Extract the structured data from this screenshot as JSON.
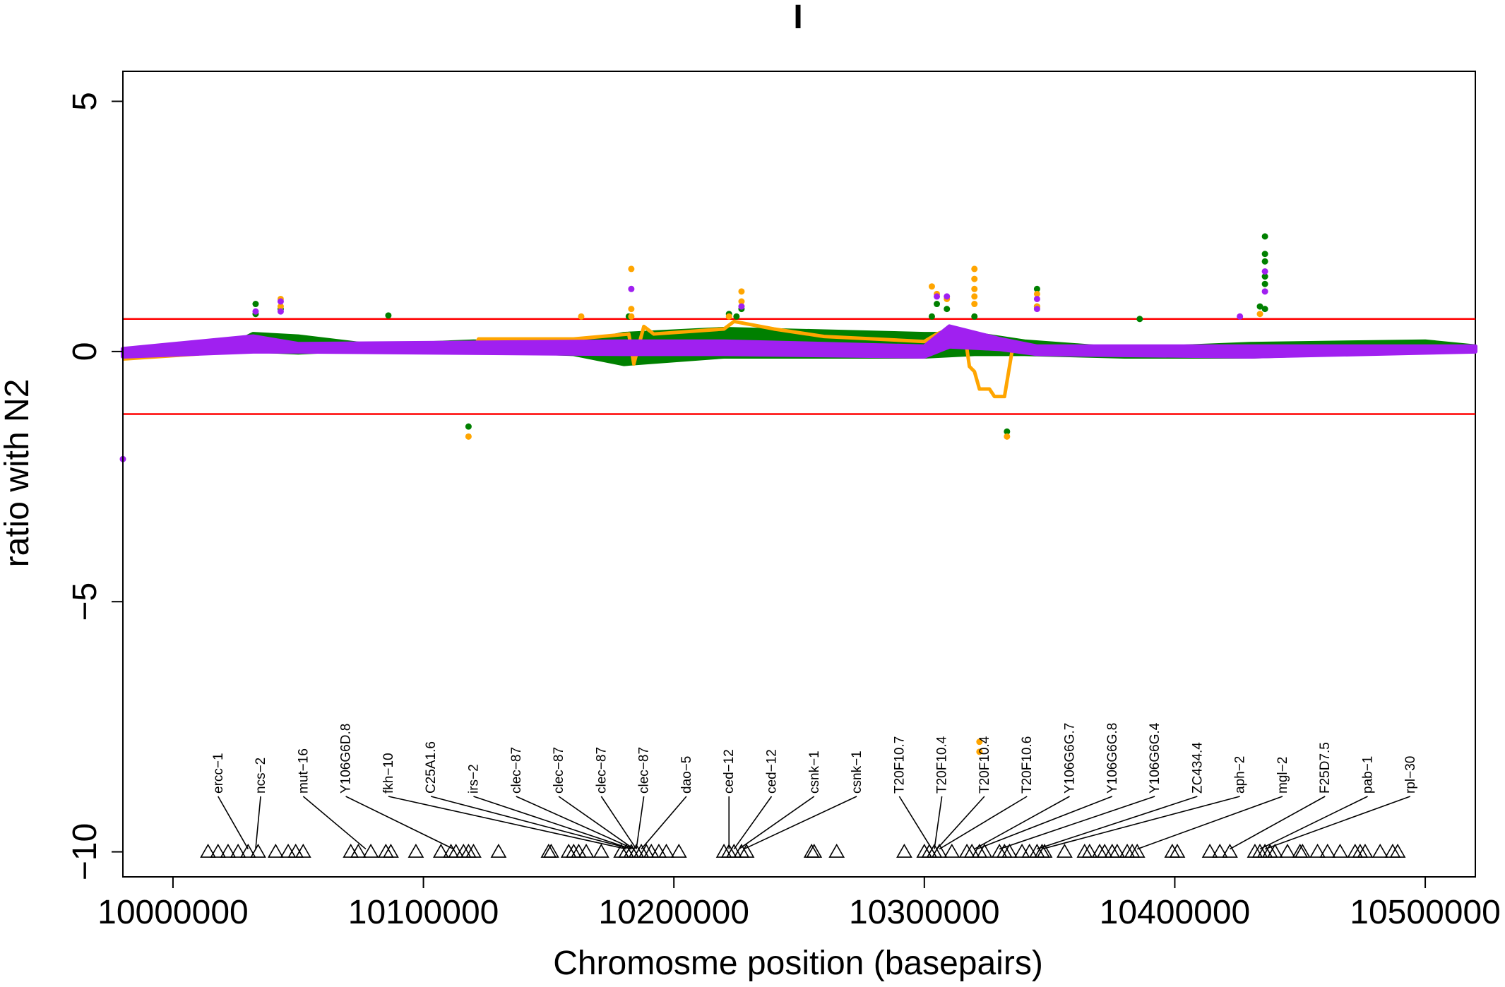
{
  "chart_data": {
    "type": "line",
    "title": "I",
    "xlabel": "Chromosme position (basepairs)",
    "ylabel": "ratio with N2",
    "xlim": [
      9980000,
      10520000
    ],
    "ylim": [
      -10.5,
      5.6
    ],
    "x_ticks": [
      10000000,
      10100000,
      10200000,
      10300000,
      10400000,
      10500000
    ],
    "x_tick_labels": [
      "10000000",
      "10100000",
      "10200000",
      "10300000",
      "10400000",
      "10500000"
    ],
    "y_ticks": [
      5,
      0,
      -5,
      -10
    ],
    "y_tick_labels": [
      "5",
      "0",
      "−5",
      "−10"
    ],
    "grid": false,
    "legend": "none",
    "thresholds": [
      {
        "y": 0.65,
        "color": "#ff0000"
      },
      {
        "y": -1.25,
        "color": "#ff0000"
      }
    ],
    "series": [
      {
        "color": "#008000",
        "band": [
          [
            9980000,
            -0.05,
            0.05
          ],
          [
            10020000,
            0.0,
            0.05
          ],
          [
            10032000,
            0.02,
            0.35
          ],
          [
            10050000,
            -0.02,
            0.3
          ],
          [
            10080000,
            0.05,
            0.12
          ],
          [
            10120000,
            0.02,
            0.2
          ],
          [
            10160000,
            -0.05,
            0.15
          ],
          [
            10180000,
            -0.25,
            0.35
          ],
          [
            10220000,
            -0.1,
            0.45
          ],
          [
            10300000,
            -0.1,
            0.35
          ],
          [
            10320000,
            -0.05,
            0.35
          ],
          [
            10340000,
            -0.05,
            0.2
          ],
          [
            10380000,
            -0.1,
            0.05
          ],
          [
            10430000,
            -0.1,
            0.15
          ],
          [
            10500000,
            0.0,
            0.2
          ],
          [
            10520000,
            0.05,
            0.1
          ]
        ],
        "outliers": [
          [
            10033000,
            0.95
          ],
          [
            10033000,
            0.75
          ],
          [
            10043000,
            0.85
          ],
          [
            10086000,
            0.72
          ],
          [
            10118000,
            -1.5
          ],
          [
            10182000,
            0.7
          ],
          [
            10222000,
            0.75
          ],
          [
            10225000,
            0.7
          ],
          [
            10227000,
            0.85
          ],
          [
            10303000,
            0.7
          ],
          [
            10305000,
            0.95
          ],
          [
            10309000,
            0.85
          ],
          [
            10320000,
            0.7
          ],
          [
            10333000,
            -1.6
          ],
          [
            10345000,
            1.25
          ],
          [
            10345000,
            0.9
          ],
          [
            10386000,
            0.65
          ],
          [
            10434000,
            0.9
          ],
          [
            10436000,
            2.3
          ],
          [
            10436000,
            1.95
          ],
          [
            10436000,
            1.8
          ],
          [
            10436000,
            1.5
          ],
          [
            10436000,
            1.35
          ],
          [
            10436000,
            0.85
          ]
        ]
      },
      {
        "color": "#ffa500",
        "path": [
          [
            9980000,
            -0.15
          ],
          [
            10010000,
            -0.05
          ],
          [
            10032000,
            0.25
          ],
          [
            10045000,
            0.05
          ],
          [
            10120000,
            0.05
          ],
          [
            10122000,
            0.25
          ],
          [
            10160000,
            0.25
          ],
          [
            10182000,
            0.35
          ],
          [
            10184000,
            -0.25
          ],
          [
            10188000,
            0.5
          ],
          [
            10192000,
            0.35
          ],
          [
            10220000,
            0.45
          ],
          [
            10224000,
            0.6
          ],
          [
            10240000,
            0.45
          ],
          [
            10260000,
            0.3
          ],
          [
            10300000,
            0.2
          ],
          [
            10305000,
            0.35
          ],
          [
            10310000,
            0.45
          ],
          [
            10316000,
            0.4
          ],
          [
            10318000,
            -0.3
          ],
          [
            10320000,
            -0.4
          ],
          [
            10322000,
            -0.75
          ],
          [
            10326000,
            -0.75
          ],
          [
            10328000,
            -0.9
          ],
          [
            10332000,
            -0.9
          ],
          [
            10335000,
            0.0
          ],
          [
            10345000,
            0.05
          ],
          [
            10385000,
            0.0
          ],
          [
            10420000,
            0.1
          ],
          [
            10440000,
            0.0
          ],
          [
            10500000,
            0.1
          ],
          [
            10520000,
            0.0
          ]
        ],
        "outliers": [
          [
            10043000,
            1.05
          ],
          [
            10043000,
            0.9
          ],
          [
            10163000,
            0.7
          ],
          [
            10183000,
            1.65
          ],
          [
            10183000,
            0.85
          ],
          [
            10183000,
            0.7
          ],
          [
            10222000,
            0.7
          ],
          [
            10227000,
            1.2
          ],
          [
            10227000,
            1.0
          ],
          [
            10303000,
            1.3
          ],
          [
            10305000,
            1.15
          ],
          [
            10309000,
            1.05
          ],
          [
            10320000,
            1.65
          ],
          [
            10320000,
            1.45
          ],
          [
            10320000,
            1.25
          ],
          [
            10320000,
            1.1
          ],
          [
            10320000,
            0.95
          ],
          [
            10322000,
            -7.8
          ],
          [
            10322000,
            -8.0
          ],
          [
            10333000,
            -1.7
          ],
          [
            10345000,
            1.15
          ],
          [
            10345000,
            0.9
          ],
          [
            10118000,
            -1.7
          ],
          [
            10434000,
            0.75
          ]
        ]
      },
      {
        "color": "#a020f0",
        "band": [
          [
            9980000,
            -0.1,
            0.05
          ],
          [
            10032000,
            0.0,
            0.3
          ],
          [
            10050000,
            0.0,
            0.15
          ],
          [
            10180000,
            -0.05,
            0.2
          ],
          [
            10220000,
            -0.05,
            0.2
          ],
          [
            10300000,
            -0.1,
            0.1
          ],
          [
            10310000,
            0.1,
            0.5
          ],
          [
            10330000,
            0.05,
            0.25
          ],
          [
            10345000,
            -0.05,
            0.1
          ],
          [
            10430000,
            -0.1,
            0.1
          ],
          [
            10520000,
            0.0,
            0.1
          ]
        ],
        "outliers": [
          [
            9980000,
            -2.15
          ],
          [
            10033000,
            0.8
          ],
          [
            10043000,
            1.0
          ],
          [
            10043000,
            0.8
          ],
          [
            10183000,
            1.25
          ],
          [
            10227000,
            0.9
          ],
          [
            10305000,
            1.1
          ],
          [
            10309000,
            1.1
          ],
          [
            10345000,
            1.05
          ],
          [
            10345000,
            0.85
          ],
          [
            10426000,
            0.7
          ],
          [
            10436000,
            1.6
          ],
          [
            10436000,
            1.2
          ]
        ]
      }
    ],
    "genes": [
      {
        "name": "ercc−1",
        "label_x": 10018000
      },
      {
        "name": "ncs−2",
        "label_x": 10035000
      },
      {
        "name": "mut−16",
        "label_x": 10052000
      },
      {
        "name": "Y106G6D.8",
        "label_x": 10069000
      },
      {
        "name": "fkh−10",
        "label_x": 10086000
      },
      {
        "name": "C25A1.6",
        "label_x": 10103000
      },
      {
        "name": "irs−2",
        "label_x": 10120000
      },
      {
        "name": "clec−87",
        "label_x": 10137000
      },
      {
        "name": "clec−87",
        "label_x": 10154000
      },
      {
        "name": "clec−87",
        "label_x": 10171000
      },
      {
        "name": "clec−87",
        "label_x": 10188000
      },
      {
        "name": "dao−5",
        "label_x": 10205000
      },
      {
        "name": "ced−12",
        "label_x": 10222000
      },
      {
        "name": "ced−12",
        "label_x": 10239000
      },
      {
        "name": "csnk−1",
        "label_x": 10256000
      },
      {
        "name": "csnk−1",
        "label_x": 10273000
      },
      {
        "name": "T20F10.7",
        "label_x": 10290000
      },
      {
        "name": "T20F10.4",
        "label_x": 10307000
      },
      {
        "name": "T20F10.4",
        "label_x": 10324000
      },
      {
        "name": "T20F10.6",
        "label_x": 10341000
      },
      {
        "name": "Y106G6G.7",
        "label_x": 10358000
      },
      {
        "name": "Y106G6G.8",
        "label_x": 10375000
      },
      {
        "name": "Y106G6G.4",
        "label_x": 10392000
      },
      {
        "name": "ZC434.4",
        "label_x": 10409000
      },
      {
        "name": "aph−2",
        "label_x": 10426000
      },
      {
        "name": "mgl−2",
        "label_x": 10443000
      },
      {
        "name": "F25D7.5",
        "label_x": 10460000
      },
      {
        "name": "pab−1",
        "label_x": 10477000
      },
      {
        "name": "rpl−30",
        "label_x": 10494000
      }
    ],
    "gene_links": [
      {
        "label_x": 10018000,
        "target_x": 10030000
      },
      {
        "label_x": 10035000,
        "target_x": 10033000
      },
      {
        "label_x": 10052000,
        "target_x": 10077000
      },
      {
        "label_x": 10069000,
        "target_x": 10112000
      },
      {
        "label_x": 10086000,
        "target_x": 10181000
      },
      {
        "label_x": 10103000,
        "target_x": 10183000
      },
      {
        "label_x": 10120000,
        "target_x": 10183000
      },
      {
        "label_x": 10137000,
        "target_x": 10184000
      },
      {
        "label_x": 10154000,
        "target_x": 10184000
      },
      {
        "label_x": 10171000,
        "target_x": 10185000
      },
      {
        "label_x": 10188000,
        "target_x": 10185000
      },
      {
        "label_x": 10205000,
        "target_x": 10187000
      },
      {
        "label_x": 10222000,
        "target_x": 10222000
      },
      {
        "label_x": 10239000,
        "target_x": 10224000
      },
      {
        "label_x": 10256000,
        "target_x": 10226000
      },
      {
        "label_x": 10273000,
        "target_x": 10228000
      },
      {
        "label_x": 10290000,
        "target_x": 10303000
      },
      {
        "label_x": 10307000,
        "target_x": 10304000
      },
      {
        "label_x": 10324000,
        "target_x": 10305000
      },
      {
        "label_x": 10341000,
        "target_x": 10306000
      },
      {
        "label_x": 10358000,
        "target_x": 10320000
      },
      {
        "label_x": 10375000,
        "target_x": 10321000
      },
      {
        "label_x": 10392000,
        "target_x": 10330000
      },
      {
        "label_x": 10409000,
        "target_x": 10345000
      },
      {
        "label_x": 10426000,
        "target_x": 10347000
      },
      {
        "label_x": 10443000,
        "target_x": 10385000
      },
      {
        "label_x": 10460000,
        "target_x": 10422000
      },
      {
        "label_x": 10477000,
        "target_x": 10434000
      },
      {
        "label_x": 10494000,
        "target_x": 10436000
      }
    ],
    "gene_markers_y": -10,
    "gene_markers_x": [
      10014000,
      10018000,
      10022000,
      10026000,
      10030000,
      10034000,
      10041000,
      10046000,
      10049000,
      10052000,
      10071000,
      10074000,
      10079000,
      10085000,
      10087000,
      10097000,
      10107000,
      10111000,
      10113000,
      10116000,
      10118000,
      10120000,
      10130000,
      10150000,
      10151000,
      10158000,
      10160000,
      10162000,
      10165000,
      10171000,
      10179000,
      10181000,
      10183000,
      10185000,
      10187000,
      10189000,
      10191000,
      10194000,
      10197000,
      10202000,
      10220000,
      10222000,
      10224000,
      10227000,
      10229000,
      10255000,
      10256000,
      10265000,
      10292000,
      10300000,
      10302000,
      10304000,
      10306000,
      10311000,
      10317000,
      10319000,
      10322000,
      10324000,
      10330000,
      10332000,
      10334000,
      10339000,
      10342000,
      10345000,
      10347000,
      10348000,
      10356000,
      10364000,
      10366000,
      10370000,
      10372000,
      10375000,
      10377000,
      10381000,
      10383000,
      10385000,
      10399000,
      10401000,
      10414000,
      10418000,
      10422000,
      10432000,
      10434000,
      10436000,
      10438000,
      10440000,
      10445000,
      10450000,
      10451000,
      10457000,
      10461000,
      10466000,
      10472000,
      10474000,
      10476000,
      10482000,
      10487000,
      10489000
    ]
  }
}
